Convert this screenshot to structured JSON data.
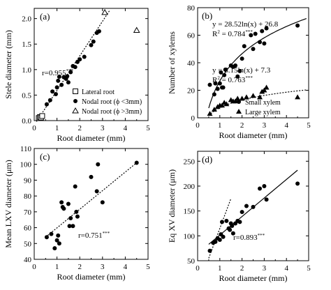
{
  "chart_data": [
    {
      "id": "a",
      "type": "scatter",
      "panel_label": "(a)",
      "xlabel": "Root diameter (mm)",
      "ylabel": "Stele diameter (mm)",
      "xlim": [
        0,
        5
      ],
      "ylim": [
        0,
        2.2
      ],
      "xticks": [
        "0",
        "1",
        "2",
        "3",
        "4",
        "5"
      ],
      "yticks": [
        "0.0",
        "0.5",
        "1.0",
        "1.5",
        "2.0"
      ],
      "annotation": {
        "text": "r=0.955",
        "sup": "***"
      },
      "legend": {
        "placement": "bottom-right",
        "entries": [
          {
            "marker": "open-square",
            "label": "Lateral root"
          },
          {
            "marker": "filled-circle",
            "label": "Nodal root (ϕ <3mm)"
          },
          {
            "marker": "open-triangle",
            "label": "Nodal root (ϕ >3mm)"
          }
        ]
      },
      "series": [
        {
          "marker": "open-square",
          "points": [
            [
              0.2,
              0.05
            ],
            [
              0.25,
              0.07
            ],
            [
              0.3,
              0.06
            ],
            [
              0.35,
              0.09
            ]
          ]
        },
        {
          "marker": "filled-circle",
          "points": [
            [
              0.55,
              0.32
            ],
            [
              0.7,
              0.4
            ],
            [
              0.8,
              0.57
            ],
            [
              0.95,
              0.52
            ],
            [
              1.0,
              0.65
            ],
            [
              1.05,
              0.78
            ],
            [
              1.1,
              0.86
            ],
            [
              1.2,
              0.7
            ],
            [
              1.3,
              0.85
            ],
            [
              1.4,
              0.82
            ],
            [
              1.45,
              0.87
            ],
            [
              1.5,
              0.75
            ],
            [
              1.6,
              0.95
            ],
            [
              1.7,
              1.07
            ],
            [
              1.8,
              1.05
            ],
            [
              1.9,
              1.15
            ],
            [
              2.0,
              1.2
            ],
            [
              2.2,
              1.25
            ],
            [
              2.5,
              1.48
            ],
            [
              2.6,
              1.55
            ],
            [
              2.75,
              1.72
            ],
            [
              2.85,
              1.75
            ]
          ]
        },
        {
          "marker": "open-triangle",
          "points": [
            [
              3.1,
              2.12
            ],
            [
              4.5,
              1.77
            ]
          ]
        }
      ],
      "trendlines": [
        {
          "style": "dotted",
          "from": [
            0.1,
            -0.02
          ],
          "to": [
            3.3,
            2.15
          ]
        }
      ]
    },
    {
      "id": "b",
      "type": "scatter",
      "panel_label": "(b)",
      "xlabel": "Root diameter (mm)",
      "ylabel": "Number of xylems",
      "xlim": [
        0,
        5
      ],
      "ylim": [
        0,
        80
      ],
      "xticks": [
        "0",
        "1",
        "2",
        "3",
        "4",
        "5"
      ],
      "yticks": [
        "0",
        "20",
        "40",
        "60",
        "80"
      ],
      "annotations": [
        {
          "line1": "y = 28.52ln(x) + 26.8",
          "line2": "R",
          "line2_sup": "2",
          "line2_rest": " = 0.784",
          "line2_stars": "***"
        },
        {
          "line1": "y = 8.15ln(x) + 7.3",
          "line2": "R",
          "line2_sup": "2",
          "line2_rest": " = 0.763",
          "line2_stars": "***"
        }
      ],
      "legend": {
        "placement": "right",
        "entries": [
          {
            "marker": "filled-circle",
            "label": "Small xylem"
          },
          {
            "marker": "filled-triangle",
            "label": "Large xylem"
          }
        ]
      },
      "series": [
        {
          "marker": "filled-circle",
          "points": [
            [
              0.55,
              24
            ],
            [
              0.75,
              17
            ],
            [
              0.8,
              25
            ],
            [
              0.9,
              21
            ],
            [
              1.0,
              25
            ],
            [
              1.05,
              33
            ],
            [
              1.1,
              22
            ],
            [
              1.15,
              22
            ],
            [
              1.2,
              31
            ],
            [
              1.25,
              35
            ],
            [
              1.5,
              38
            ],
            [
              1.6,
              37
            ],
            [
              1.7,
              38
            ],
            [
              1.8,
              30
            ],
            [
              1.9,
              34
            ],
            [
              2.0,
              43
            ],
            [
              2.1,
              52
            ],
            [
              2.4,
              60
            ],
            [
              2.5,
              50
            ],
            [
              2.6,
              61
            ],
            [
              2.8,
              55
            ],
            [
              2.9,
              63
            ],
            [
              3.0,
              54
            ],
            [
              3.1,
              65
            ],
            [
              4.5,
              67
            ]
          ]
        },
        {
          "marker": "filled-triangle",
          "points": [
            [
              0.55,
              3
            ],
            [
              0.75,
              6
            ],
            [
              0.9,
              8
            ],
            [
              1.0,
              9
            ],
            [
              1.1,
              9
            ],
            [
              1.2,
              11
            ],
            [
              1.3,
              10
            ],
            [
              1.5,
              13
            ],
            [
              1.6,
              12
            ],
            [
              1.7,
              12
            ],
            [
              1.8,
              14
            ],
            [
              2.0,
              14
            ],
            [
              2.2,
              15
            ],
            [
              2.5,
              16
            ],
            [
              2.8,
              15
            ],
            [
              2.9,
              19
            ],
            [
              3.0,
              20
            ],
            [
              3.1,
              22
            ],
            [
              4.5,
              15
            ]
          ]
        }
      ],
      "trendlines": [
        {
          "style": "solid",
          "formula": "log",
          "a": 28.52,
          "b": 26.8,
          "x_range": [
            0.5,
            4.9
          ]
        },
        {
          "style": "dotted",
          "formula": "log",
          "a": 8.15,
          "b": 7.3,
          "x_range": [
            0.5,
            4.9
          ]
        }
      ]
    },
    {
      "id": "c",
      "type": "scatter",
      "panel_label": "(c)",
      "xlabel": "Root diameter (mm)",
      "ylabel": "Mean LXV diameter (μm)",
      "xlim": [
        0,
        5
      ],
      "ylim": [
        40,
        110
      ],
      "xticks": [
        "0",
        "1",
        "2",
        "3",
        "4",
        "5"
      ],
      "yticks": [
        "40",
        "50",
        "60",
        "70",
        "80",
        "90",
        "100",
        "110"
      ],
      "annotation": {
        "text": "r=0.751",
        "sup": "***"
      },
      "series": [
        {
          "marker": "filled-circle",
          "points": [
            [
              0.55,
              54
            ],
            [
              0.75,
              56
            ],
            [
              0.9,
              47
            ],
            [
              1.0,
              52
            ],
            [
              1.05,
              55
            ],
            [
              1.1,
              50
            ],
            [
              1.2,
              76
            ],
            [
              1.25,
              73
            ],
            [
              1.3,
              72
            ],
            [
              1.5,
              75
            ],
            [
              1.55,
              61
            ],
            [
              1.6,
              66
            ],
            [
              1.7,
              61
            ],
            [
              1.8,
              86
            ],
            [
              1.85,
              70
            ],
            [
              1.9,
              67
            ],
            [
              2.5,
              92
            ],
            [
              2.75,
              83
            ],
            [
              2.8,
              100
            ],
            [
              3.0,
              76
            ],
            [
              4.5,
              101
            ]
          ]
        }
      ],
      "trendlines": [
        {
          "style": "dotted",
          "from": [
            0.5,
            54
          ],
          "to": [
            4.5,
            101
          ]
        }
      ]
    },
    {
      "id": "d",
      "type": "scatter",
      "panel_label": "(d)",
      "xlabel": "Root diameter (mm)",
      "ylabel": "Eq XV diameter (μm)",
      "xlim": [
        0,
        5
      ],
      "ylim": [
        50,
        270
      ],
      "xticks": [
        "0",
        "1",
        "2",
        "3",
        "4",
        "5"
      ],
      "yticks": [
        "50",
        "100",
        "150",
        "200",
        "250"
      ],
      "annotation": {
        "text": "r=0.893",
        "sup": "***"
      },
      "series": [
        {
          "marker": "filled-circle",
          "points": [
            [
              0.55,
              70
            ],
            [
              0.7,
              86
            ],
            [
              0.8,
              88
            ],
            [
              0.9,
              95
            ],
            [
              1.0,
              92
            ],
            [
              1.05,
              103
            ],
            [
              1.1,
              128
            ],
            [
              1.15,
              98
            ],
            [
              1.3,
              130
            ],
            [
              1.4,
              115
            ],
            [
              1.45,
              112
            ],
            [
              1.5,
              125
            ],
            [
              1.55,
              120
            ],
            [
              1.6,
              105
            ],
            [
              1.7,
              125
            ],
            [
              1.8,
              130
            ],
            [
              1.9,
              128
            ],
            [
              2.0,
              148
            ],
            [
              2.2,
              160
            ],
            [
              2.5,
              158
            ],
            [
              2.8,
              195
            ],
            [
              3.0,
              200
            ],
            [
              3.1,
              173
            ],
            [
              4.5,
              205
            ]
          ]
        }
      ],
      "trendlines": [
        {
          "style": "solid",
          "from": [
            0.5,
            83
          ],
          "to": [
            4.5,
            232
          ]
        },
        {
          "style": "dotted",
          "from": [
            0.5,
            55
          ],
          "to": [
            1.5,
            175
          ]
        }
      ]
    }
  ]
}
